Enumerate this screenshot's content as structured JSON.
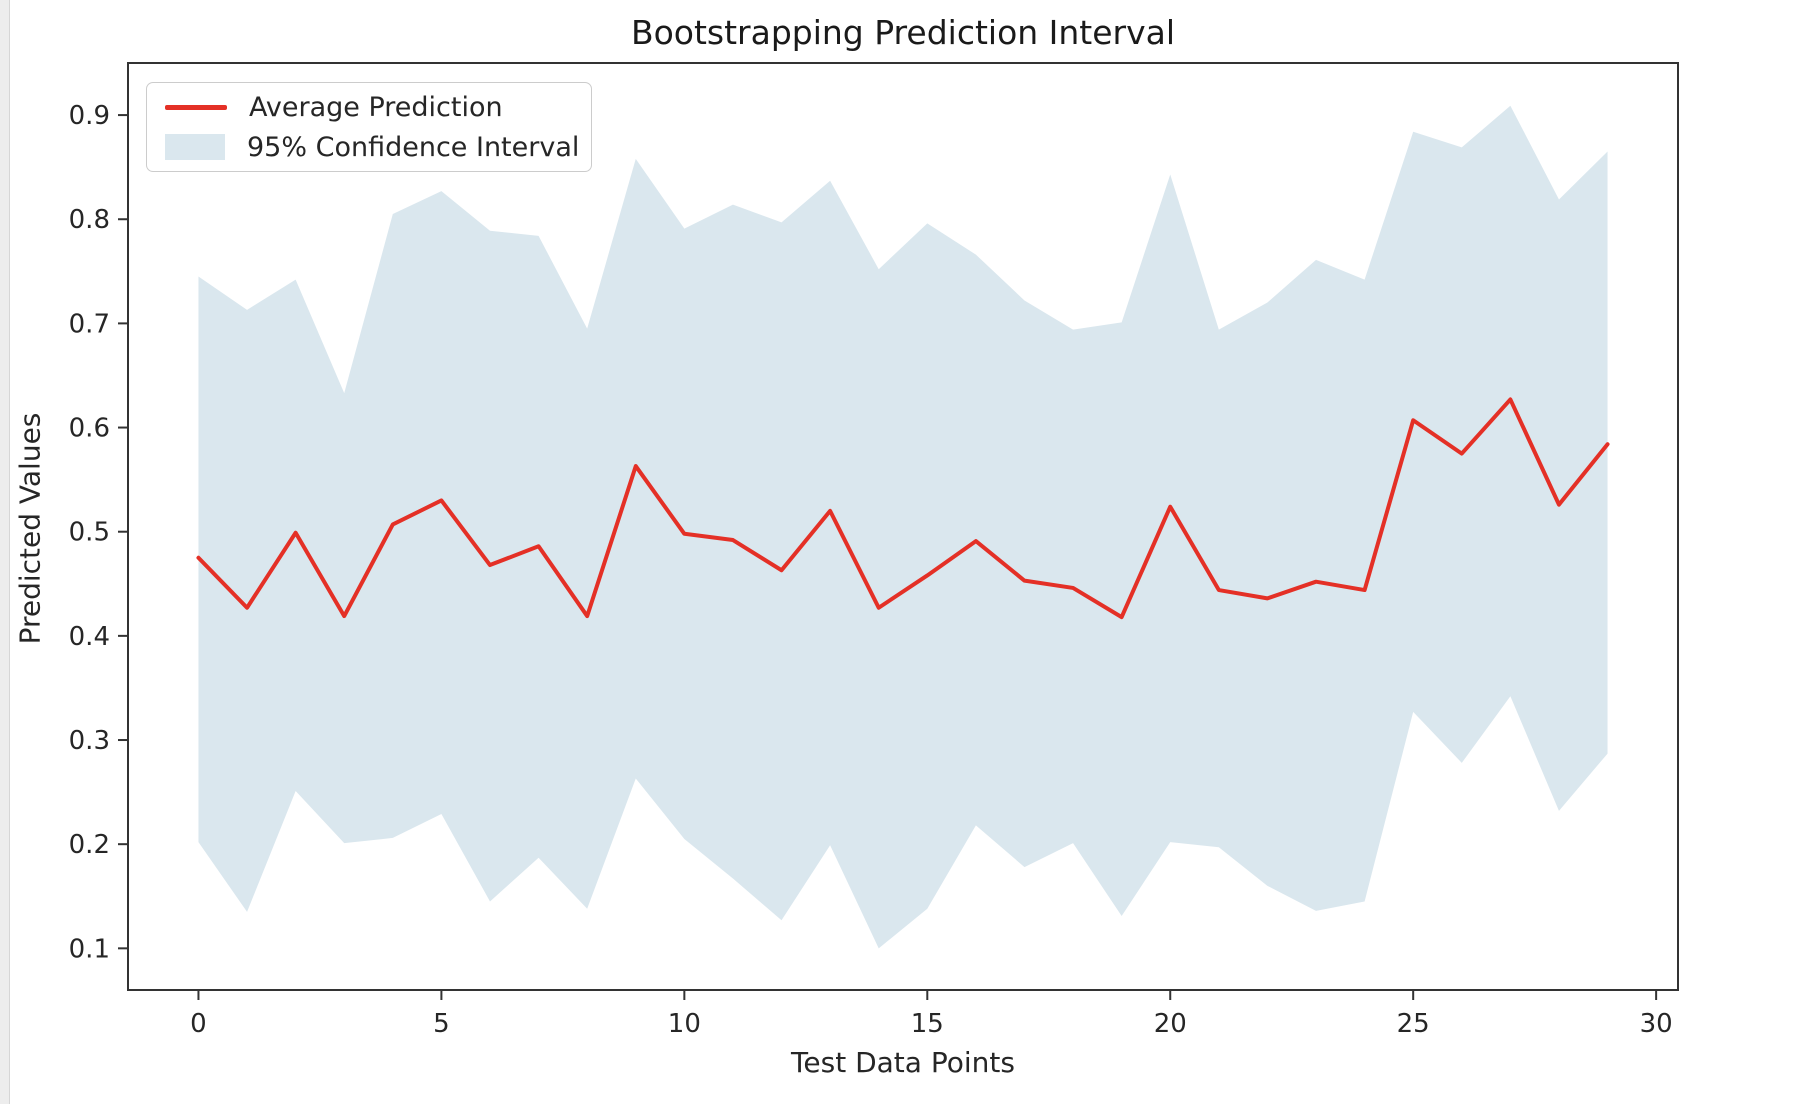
{
  "figure": {
    "title": "Bootstrapping Prediction Interval",
    "xlabel": "Test Data Points",
    "ylabel": "Predicted Values"
  },
  "legend": {
    "position": "upper left",
    "items": [
      {
        "label": "Average Prediction",
        "type": "line",
        "color": "#e43026"
      },
      {
        "label": "95% Confidence Interval",
        "type": "patch",
        "color": "#dae7ee"
      }
    ]
  },
  "chart_data": {
    "type": "line",
    "title": "Bootstrapping Prediction Interval",
    "xlabel": "Test Data Points",
    "ylabel": "Predicted Values",
    "grid": false,
    "legend_position": "upper left",
    "x": [
      0,
      1,
      2,
      3,
      4,
      5,
      6,
      7,
      8,
      9,
      10,
      11,
      12,
      13,
      14,
      15,
      16,
      17,
      18,
      19,
      20,
      21,
      22,
      23,
      24,
      25,
      26,
      27,
      28,
      29
    ],
    "series": [
      {
        "name": "Average Prediction",
        "color": "#e43026",
        "line_width": 4,
        "values": [
          0.475,
          0.427,
          0.499,
          0.419,
          0.507,
          0.53,
          0.468,
          0.486,
          0.419,
          0.563,
          0.498,
          0.492,
          0.463,
          0.52,
          0.427,
          0.458,
          0.491,
          0.453,
          0.446,
          0.418,
          0.524,
          0.444,
          0.436,
          0.452,
          0.444,
          0.607,
          0.575,
          0.627,
          0.526,
          0.584
        ]
      }
    ],
    "band": {
      "name": "95% Confidence Interval",
      "fill": "#dae7ee",
      "upper": [
        0.745,
        0.713,
        0.742,
        0.633,
        0.805,
        0.827,
        0.789,
        0.784,
        0.695,
        0.858,
        0.791,
        0.814,
        0.797,
        0.837,
        0.752,
        0.796,
        0.766,
        0.722,
        0.694,
        0.701,
        0.843,
        0.694,
        0.72,
        0.761,
        0.742,
        0.884,
        0.869,
        0.909,
        0.819,
        0.865
      ],
      "lower": [
        0.202,
        0.135,
        0.251,
        0.201,
        0.206,
        0.229,
        0.145,
        0.187,
        0.138,
        0.263,
        0.205,
        0.167,
        0.127,
        0.199,
        0.1,
        0.138,
        0.218,
        0.178,
        0.201,
        0.131,
        0.202,
        0.197,
        0.16,
        0.136,
        0.145,
        0.327,
        0.278,
        0.342,
        0.232,
        0.287
      ]
    },
    "x_ticks": [
      0,
      5,
      10,
      15,
      20,
      25,
      30
    ],
    "x_tick_labels": [
      "0",
      "5",
      "10",
      "15",
      "20",
      "25",
      "30"
    ],
    "y_ticks": [
      0.1,
      0.2,
      0.3,
      0.4,
      0.5,
      0.6,
      0.7,
      0.8,
      0.9
    ],
    "y_tick_labels": [
      "0.1",
      "0.2",
      "0.3",
      "0.4",
      "0.5",
      "0.6",
      "0.7",
      "0.8",
      "0.9"
    ],
    "xlim": [
      -1.45,
      30.45
    ],
    "ylim": [
      0.06,
      0.95
    ],
    "axis_color": "#333333",
    "tick_label_size": 26
  }
}
